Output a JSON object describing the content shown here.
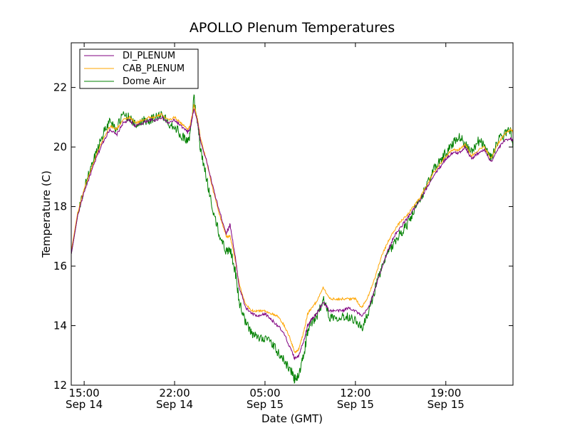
{
  "chart_data": {
    "type": "line",
    "title": "APOLLO Plenum Temperatures",
    "xlabel": "Date (GMT)",
    "ylabel": "Temperature (C)",
    "x_unit": "hours since Sep 14 14:00 GMT",
    "xlim": [
      0,
      34.2
    ],
    "ylim": [
      12,
      23.5
    ],
    "grid": false,
    "legend_position": "top-left",
    "x_ticks": [
      {
        "x": 1,
        "label_time": "15:00",
        "label_date": "Sep 14"
      },
      {
        "x": 8,
        "label_time": "22:00",
        "label_date": "Sep 14"
      },
      {
        "x": 15,
        "label_time": "05:00",
        "label_date": "Sep 15"
      },
      {
        "x": 22,
        "label_time": "12:00",
        "label_date": "Sep 15"
      },
      {
        "x": 29,
        "label_time": "19:00",
        "label_date": "Sep 15"
      }
    ],
    "y_ticks": [
      12,
      14,
      16,
      18,
      20,
      22
    ],
    "series": [
      {
        "name": "DI_PLENUM",
        "color": "#800080",
        "x": [
          0,
          0.5,
          1,
          1.5,
          2,
          2.5,
          3,
          3.5,
          4,
          4.5,
          5,
          5.5,
          6,
          6.5,
          7,
          7.5,
          8,
          8.5,
          9,
          9.2,
          9.5,
          9.8,
          10,
          10.5,
          11,
          11.5,
          12,
          12.3,
          12.7,
          13,
          13.5,
          14,
          14.5,
          15,
          15.5,
          16,
          16.5,
          17,
          17.3,
          17.6,
          18,
          18.3,
          18.6,
          19,
          19.5,
          20,
          20.5,
          21,
          21.5,
          22,
          22.5,
          23,
          23.5,
          24,
          24.5,
          25,
          25.5,
          26,
          26.5,
          27,
          27.5,
          28,
          28.5,
          29,
          29.5,
          30,
          30.5,
          31,
          31.5,
          32,
          32.5,
          33,
          33.5,
          34,
          34.2
        ],
        "y": [
          16.4,
          17.7,
          18.5,
          19.1,
          19.7,
          20.2,
          20.6,
          20.4,
          20.8,
          20.9,
          20.7,
          20.8,
          20.9,
          20.9,
          21.0,
          20.8,
          20.9,
          20.7,
          20.5,
          20.6,
          21.3,
          20.8,
          20.2,
          19.5,
          18.6,
          17.8,
          17.1,
          17.4,
          16.3,
          15.3,
          14.6,
          14.4,
          14.3,
          14.4,
          14.2,
          14.0,
          13.7,
          13.2,
          12.9,
          13.0,
          13.5,
          14.0,
          14.2,
          14.4,
          14.8,
          14.5,
          14.5,
          14.5,
          14.6,
          14.5,
          14.3,
          14.6,
          15.2,
          15.9,
          16.5,
          17.0,
          17.3,
          17.6,
          17.9,
          18.2,
          18.6,
          19.0,
          19.3,
          19.6,
          19.8,
          19.8,
          20.0,
          19.6,
          19.8,
          19.9,
          19.5,
          19.9,
          20.2,
          20.3,
          20.2
        ]
      },
      {
        "name": "CAB_PLENUM",
        "color": "#ffa500",
        "x": [
          0,
          0.5,
          1,
          1.5,
          2,
          2.5,
          3,
          3.5,
          4,
          4.5,
          5,
          5.5,
          6,
          6.5,
          7,
          7.5,
          8,
          8.5,
          9,
          9.2,
          9.5,
          9.8,
          10,
          10.5,
          11,
          11.5,
          12,
          12.3,
          12.7,
          13,
          13.5,
          14,
          14.5,
          15,
          15.5,
          16,
          16.5,
          17,
          17.3,
          17.6,
          18,
          18.3,
          18.6,
          19,
          19.5,
          20,
          20.5,
          21,
          21.5,
          22,
          22.5,
          23,
          23.5,
          24,
          24.5,
          25,
          25.5,
          26,
          26.5,
          27,
          27.5,
          28,
          28.5,
          29,
          29.5,
          30,
          30.5,
          31,
          31.5,
          32,
          32.5,
          33,
          33.5,
          34,
          34.2
        ],
        "y": [
          16.5,
          17.8,
          18.6,
          19.2,
          19.8,
          20.3,
          20.7,
          20.6,
          20.9,
          21.0,
          20.8,
          20.9,
          21.0,
          21.0,
          21.1,
          20.9,
          21.0,
          20.8,
          20.6,
          20.7,
          21.4,
          20.9,
          20.3,
          19.5,
          18.5,
          17.7,
          17.0,
          17.0,
          16.2,
          15.4,
          14.7,
          14.5,
          14.5,
          14.5,
          14.4,
          14.3,
          14.0,
          13.5,
          13.1,
          13.2,
          13.8,
          14.4,
          14.6,
          14.8,
          15.3,
          14.9,
          14.9,
          14.9,
          14.9,
          14.9,
          14.6,
          15.0,
          15.6,
          16.3,
          16.8,
          17.2,
          17.5,
          17.7,
          18.0,
          18.3,
          18.7,
          19.1,
          19.4,
          19.7,
          19.9,
          19.9,
          20.1,
          19.7,
          19.9,
          20.0,
          19.6,
          20.1,
          20.4,
          20.6,
          20.5
        ]
      },
      {
        "name": "Dome Air",
        "color": "#008000",
        "x": [
          0,
          0.5,
          1,
          1.5,
          2,
          2.5,
          3,
          3.5,
          4,
          4.5,
          5,
          5.5,
          6,
          6.5,
          7,
          7.5,
          8,
          8.5,
          9,
          9.2,
          9.5,
          9.8,
          10,
          10.5,
          11,
          11.5,
          12,
          12.3,
          12.7,
          13,
          13.5,
          14,
          14.5,
          15,
          15.5,
          16,
          16.5,
          17,
          17.3,
          17.6,
          18,
          18.3,
          18.6,
          19,
          19.5,
          20,
          20.5,
          21,
          21.5,
          22,
          22.5,
          23,
          23.5,
          24,
          24.5,
          25,
          25.5,
          26,
          26.5,
          27,
          27.5,
          28,
          28.5,
          29,
          29.5,
          30,
          30.5,
          31,
          31.5,
          32,
          32.5,
          33,
          33.5,
          34,
          34.2
        ],
        "y": [
          16.4,
          17.7,
          18.6,
          19.3,
          19.9,
          20.5,
          20.9,
          20.6,
          21.1,
          21.0,
          20.7,
          20.9,
          20.9,
          21.0,
          21.1,
          20.8,
          20.7,
          20.4,
          20.2,
          20.4,
          21.7,
          20.8,
          19.9,
          18.9,
          17.8,
          17.0,
          16.5,
          16.6,
          15.8,
          14.8,
          14.1,
          13.7,
          13.6,
          13.6,
          13.4,
          13.1,
          12.8,
          12.5,
          12.2,
          12.3,
          13.0,
          13.8,
          14.1,
          14.3,
          14.9,
          14.3,
          14.3,
          14.3,
          14.3,
          14.2,
          13.9,
          14.4,
          15.2,
          15.9,
          16.4,
          16.8,
          17.1,
          17.4,
          17.8,
          18.2,
          18.7,
          19.2,
          19.5,
          19.8,
          20.1,
          20.4,
          20.1,
          19.8,
          20.2,
          20.1,
          19.6,
          20.2,
          20.4,
          20.6,
          20.0
        ]
      }
    ]
  }
}
